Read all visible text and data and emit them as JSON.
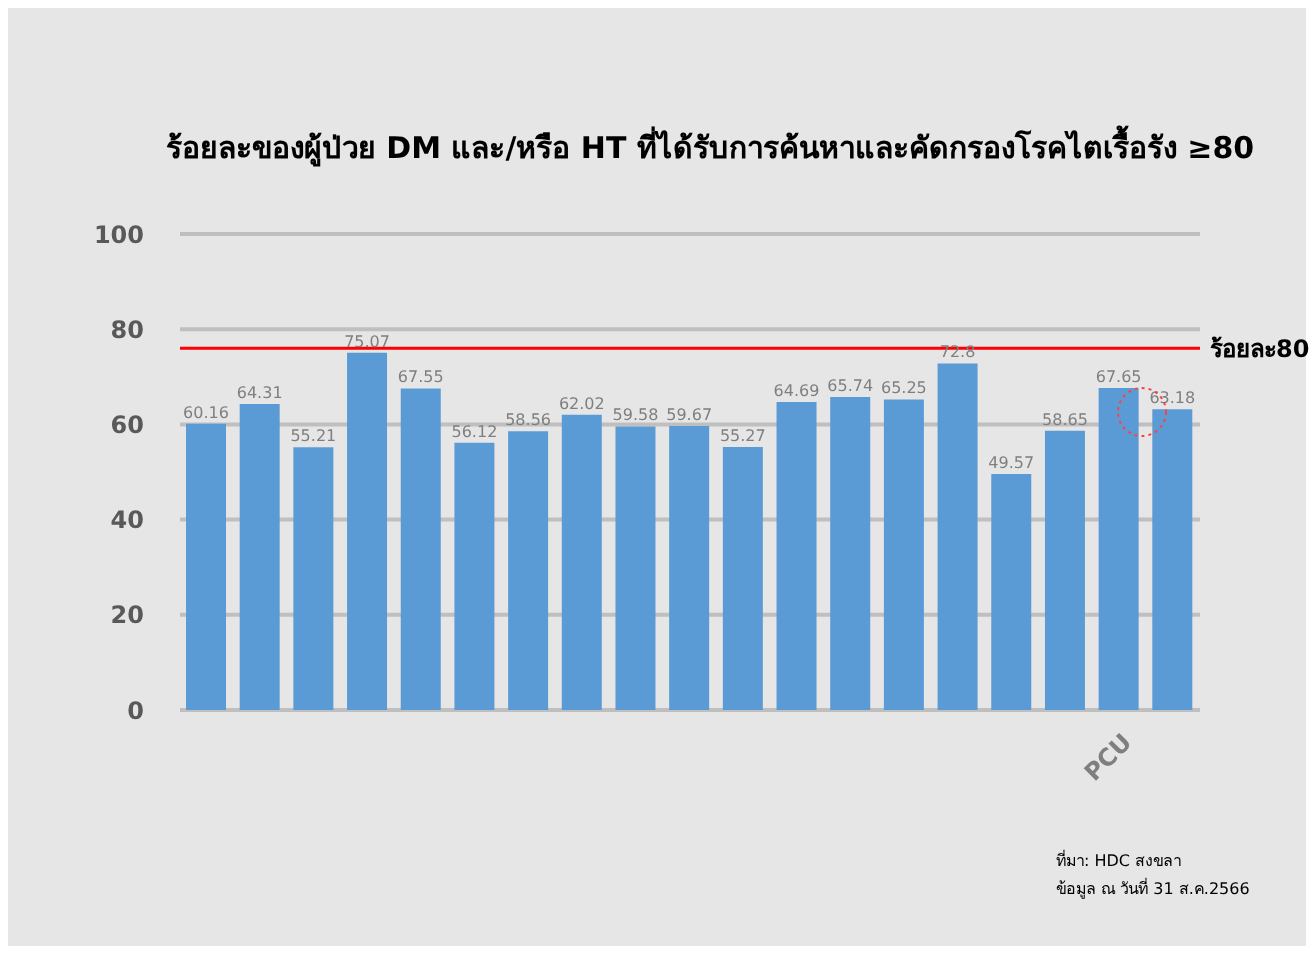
{
  "chart_data": {
    "type": "bar",
    "title": "ร้อยละของผู้ป่วย DM และ/หรือ HT ที่ได้รับการค้นหาและคัดกรองโรคไตเรื้อรัง ≥80",
    "categories": [
      null,
      null,
      null,
      null,
      null,
      null,
      null,
      null,
      null,
      null,
      null,
      null,
      null,
      null,
      null,
      null,
      null,
      "PCU",
      null
    ],
    "values": [
      60.16,
      64.31,
      55.21,
      75.07,
      67.55,
      56.12,
      58.56,
      62.02,
      59.58,
      59.67,
      55.27,
      64.69,
      65.74,
      65.25,
      72.8,
      49.57,
      58.65,
      67.65,
      63.18
    ],
    "color": "#5b9bd5",
    "ylim": [
      0,
      100
    ],
    "yticks": [
      0,
      20,
      40,
      60,
      80,
      100
    ],
    "grid": "y",
    "data_labels": true,
    "ref_lines": [
      {
        "axis": "y",
        "value": 76,
        "label": "ร้อยละ80",
        "color": "#ff0000"
      }
    ],
    "annotations": [
      "ที่มา: HDC สงขลา",
      "ข้อมูล ณ วันที่ 31 ส.ค.2566"
    ]
  }
}
